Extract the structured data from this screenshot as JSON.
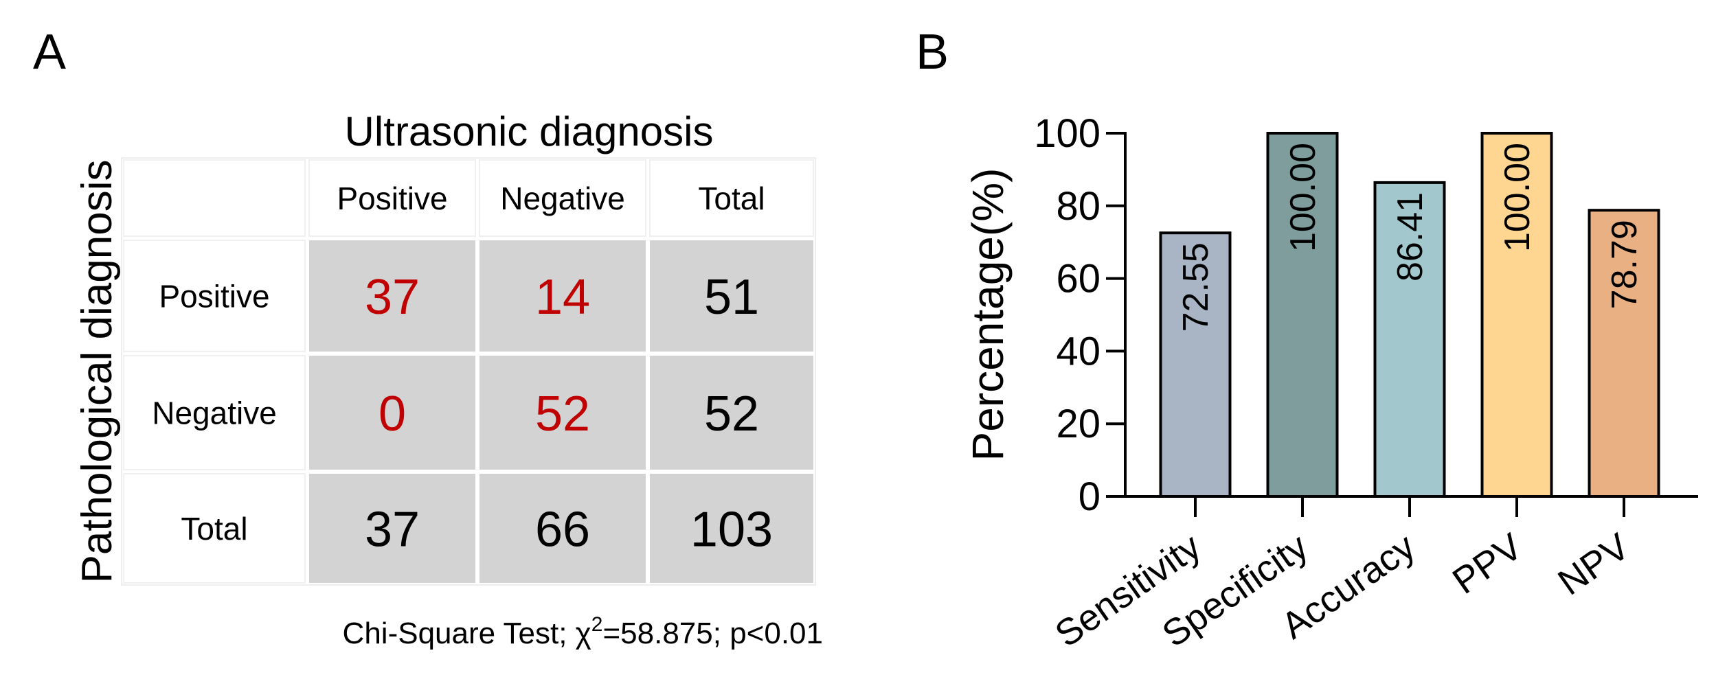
{
  "panel_a": {
    "letter": "A",
    "column_title": "Ultrasonic diagnosis",
    "row_title": "Pathological diagnosis",
    "header": [
      "",
      "Positive",
      "Negative",
      "Total"
    ],
    "rows": [
      {
        "label": "Positive",
        "cells": [
          "37",
          "14",
          "51"
        ],
        "highlight": [
          true,
          true,
          false
        ]
      },
      {
        "label": "Negative",
        "cells": [
          "0",
          "52",
          "52"
        ],
        "highlight": [
          true,
          true,
          false
        ]
      },
      {
        "label": "Total",
        "cells": [
          "37",
          "66",
          "103"
        ],
        "highlight": [
          false,
          false,
          false
        ]
      }
    ],
    "footer": {
      "pre": "Chi-Square Test; χ",
      "sup": "2",
      "post": "=58.875; p<0.01"
    },
    "colors": {
      "cell_fill": "#d3d3d3",
      "highlight_text": "#c00000",
      "text": "#000000"
    }
  },
  "chart_data": {
    "panel_letter": "B",
    "type": "bar",
    "categories": [
      "Sensitivity",
      "Specificity",
      "Accuracy",
      "PPV",
      "NPV"
    ],
    "values": [
      72.55,
      100.0,
      86.41,
      100.0,
      78.79
    ],
    "value_labels": [
      "72.55",
      "100.00",
      "86.41",
      "100.00",
      "78.79"
    ],
    "colors": [
      "#a9b5c4",
      "#7f9d9d",
      "#a2c8ce",
      "#ffd592",
      "#e9b083"
    ],
    "ylabel": "Percentage(%)",
    "xlabel": "",
    "ylim": [
      0,
      100
    ],
    "yticks": [
      "0",
      "20",
      "40",
      "60",
      "80",
      "100"
    ],
    "grid": false
  }
}
